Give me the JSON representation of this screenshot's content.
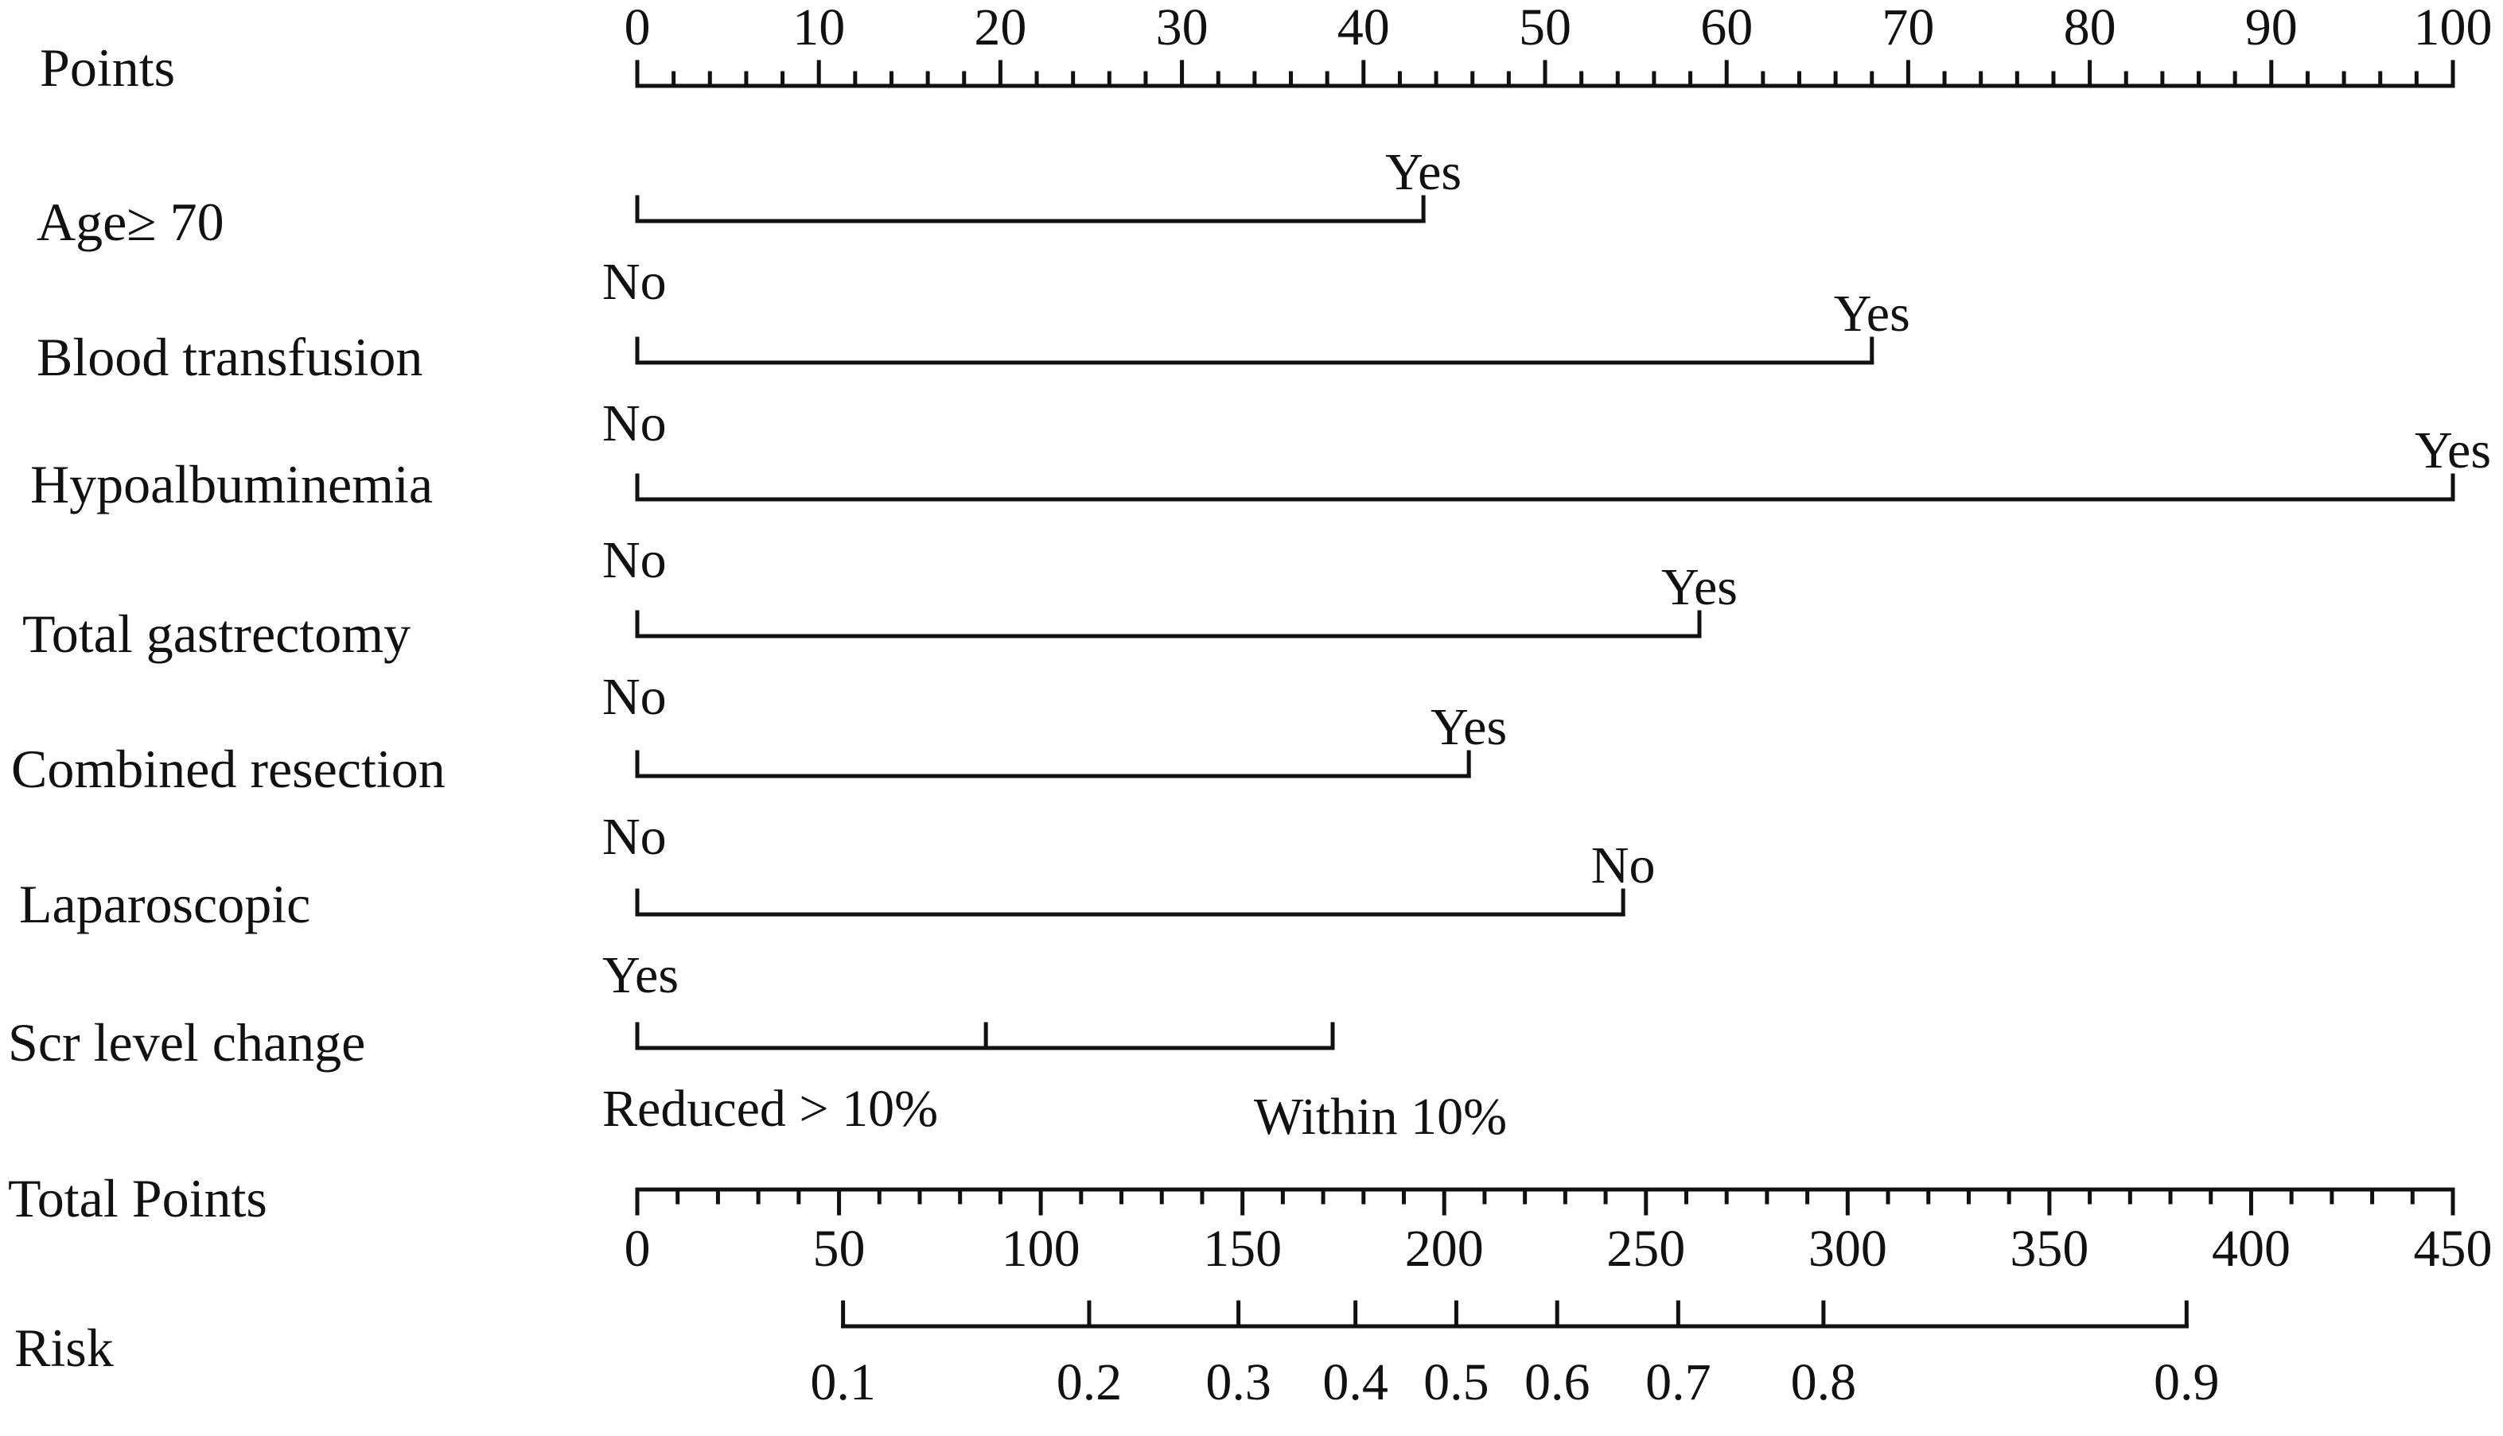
{
  "chart_data": {
    "type": "nomogram",
    "points_axis": {
      "label": "Points",
      "range": [
        0,
        100
      ],
      "ticks": [
        0,
        10,
        20,
        30,
        40,
        50,
        60,
        70,
        80,
        90,
        100
      ],
      "minor_step": 2
    },
    "predictors": [
      {
        "name": "Age≥ 70",
        "levels": [
          {
            "label": "No",
            "points": 0
          },
          {
            "label": "Yes",
            "points": 43.3
          }
        ]
      },
      {
        "name": "Blood transfusion",
        "levels": [
          {
            "label": "No",
            "points": 0
          },
          {
            "label": "Yes",
            "points": 68
          }
        ]
      },
      {
        "name": "Hypoalbuminemia",
        "levels": [
          {
            "label": "No",
            "points": 0
          },
          {
            "label": "Yes",
            "points": 100
          }
        ]
      },
      {
        "name": "Total gastrectomy",
        "levels": [
          {
            "label": "No",
            "points": 0
          },
          {
            "label": "Yes",
            "points": 58.5
          }
        ]
      },
      {
        "name": "Combined resection",
        "levels": [
          {
            "label": "No",
            "points": 0
          },
          {
            "label": "Yes",
            "points": 45.8
          }
        ]
      },
      {
        "name": "Laparoscopic",
        "levels": [
          {
            "label": "Yes",
            "points": 0
          },
          {
            "label": "No",
            "points": 54.3
          }
        ]
      },
      {
        "name": "Scr level change",
        "levels": [
          {
            "label": "Reduced > 10%",
            "points": 0
          },
          {
            "label": "",
            "points": 19.2
          },
          {
            "label": "Within 10%",
            "points": 38.3
          }
        ]
      }
    ],
    "total_points_axis": {
      "label": "Total Points",
      "range": [
        0,
        450
      ],
      "ticks": [
        0,
        50,
        100,
        150,
        200,
        250,
        300,
        350,
        400,
        450
      ],
      "minor_step": 10
    },
    "risk_axis": {
      "label": "Risk",
      "ticks": [
        {
          "label": "0.1",
          "total_points": 51
        },
        {
          "label": "0.2",
          "total_points": 112
        },
        {
          "label": "0.3",
          "total_points": 149
        },
        {
          "label": "0.4",
          "total_points": 178
        },
        {
          "label": "0.5",
          "total_points": 203
        },
        {
          "label": "0.6",
          "total_points": 228
        },
        {
          "label": "0.7",
          "total_points": 258
        },
        {
          "label": "0.8",
          "total_points": 294
        },
        {
          "label": "0.9",
          "total_points": 384
        }
      ]
    }
  }
}
